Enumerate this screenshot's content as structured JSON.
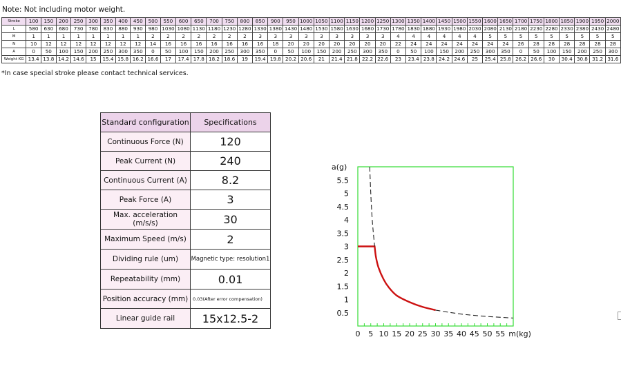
{
  "note": "Note: Not including motor weight.",
  "footnote": "*In case special stroke please contact technical services.",
  "stroke_table": {
    "rows": [
      {
        "label": "Stroke",
        "values": [
          "100",
          "150",
          "200",
          "250",
          "300",
          "350",
          "400",
          "450",
          "500",
          "550",
          "600",
          "650",
          "700",
          "750",
          "800",
          "850",
          "900",
          "950",
          "1000",
          "1050",
          "1100",
          "1150",
          "1200",
          "1250",
          "1300",
          "1350",
          "1400",
          "1450",
          "1500",
          "1550",
          "1600",
          "1650",
          "1700",
          "1750",
          "1800",
          "1850",
          "1900",
          "1950",
          "2000"
        ]
      },
      {
        "label": "L",
        "values": [
          "580",
          "630",
          "680",
          "730",
          "780",
          "830",
          "880",
          "930",
          "980",
          "1030",
          "1080",
          "1130",
          "1180",
          "1230",
          "1280",
          "1330",
          "1380",
          "1430",
          "1480",
          "1530",
          "1580",
          "1630",
          "1680",
          "1730",
          "1780",
          "1830",
          "1880",
          "1930",
          "1980",
          "2030",
          "2080",
          "2130",
          "2180",
          "2230",
          "2280",
          "2330",
          "2380",
          "2430",
          "2480"
        ]
      },
      {
        "label": "M",
        "values": [
          "1",
          "1",
          "1",
          "1",
          "1",
          "1",
          "1",
          "1",
          "2",
          "2",
          "2",
          "2",
          "2",
          "2",
          "2",
          "3",
          "3",
          "3",
          "3",
          "3",
          "3",
          "3",
          "3",
          "3",
          "4",
          "4",
          "4",
          "4",
          "4",
          "4",
          "5",
          "5",
          "5",
          "5",
          "5",
          "5",
          "5",
          "5",
          "5"
        ]
      },
      {
        "label": "N",
        "values": [
          "10",
          "12",
          "12",
          "12",
          "12",
          "12",
          "12",
          "12",
          "14",
          "16",
          "16",
          "16",
          "16",
          "16",
          "16",
          "16",
          "18",
          "20",
          "20",
          "20",
          "20",
          "20",
          "20",
          "20",
          "22",
          "24",
          "24",
          "24",
          "24",
          "24",
          "24",
          "24",
          "26",
          "28",
          "28",
          "28",
          "28",
          "28",
          "28"
        ]
      },
      {
        "label": "A",
        "values": [
          "0",
          "50",
          "100",
          "150",
          "200",
          "250",
          "300",
          "350",
          "0",
          "50",
          "100",
          "150",
          "200",
          "250",
          "300",
          "350",
          "0",
          "50",
          "100",
          "150",
          "200",
          "250",
          "300",
          "350",
          "0",
          "50",
          "100",
          "150",
          "200",
          "250",
          "300",
          "350",
          "0",
          "50",
          "100",
          "150",
          "200",
          "250",
          "300"
        ]
      },
      {
        "label": "Weight KG",
        "values": [
          "13.4",
          "13.8",
          "14.2",
          "14.6",
          "15",
          "15.4",
          "15.8",
          "16.2",
          "16.6",
          "17",
          "17.4",
          "17.8",
          "18.2",
          "18.6",
          "19",
          "19.4",
          "19.8",
          "20.2",
          "20.6",
          "21",
          "21.4",
          "21.8",
          "22.2",
          "22.6",
          "23",
          "23.4",
          "23.8",
          "24.2",
          "24.6",
          "25",
          "25.4",
          "25.8",
          "26.2",
          "26.6",
          "30",
          "30.4",
          "30.8",
          "31.2",
          "31.6"
        ]
      }
    ]
  },
  "spec_table": {
    "header_key": "Standard configuration",
    "header_value": "Specifications",
    "rows": [
      {
        "key": "Continuous Force (N)",
        "value": "120"
      },
      {
        "key": "Peak Current (N)",
        "value": "240"
      },
      {
        "key": "Continuous Current (A)",
        "value": "8.2"
      },
      {
        "key": "Peak Force (A)",
        "value": "3"
      },
      {
        "key": "Max. acceleration (m/s/s)",
        "value": "30"
      },
      {
        "key": "Maximum Speed (m/s)",
        "value": "2"
      },
      {
        "key": "Dividing rule (um)",
        "value": "Magnetic type: resolution1"
      },
      {
        "key": "Repeatability (mm)",
        "value": "0.01"
      },
      {
        "key": "Position accuracy (mm)",
        "value": "0.03(After error compensation)"
      },
      {
        "key": "Linear guide rail",
        "value": "15x12.5-2"
      }
    ]
  },
  "chart_data": {
    "type": "line",
    "ylabel": "a(g)",
    "xlabel": "m(kg)",
    "xlim": [
      0,
      60
    ],
    "ylim": [
      0,
      6
    ],
    "xticks": [
      0,
      5,
      10,
      15,
      20,
      25,
      30,
      35,
      40,
      45,
      50,
      55
    ],
    "yticks": [
      0.5,
      1,
      1.5,
      2,
      2.5,
      3,
      3.5,
      4,
      4.5,
      5,
      5.5
    ],
    "series": [
      {
        "style": "solid",
        "color": "#cc1111",
        "x": [
          0,
          6.5,
          7,
          8,
          10,
          12,
          15,
          20,
          25,
          30
        ],
        "y": [
          3.0,
          3.0,
          2.6,
          2.2,
          1.75,
          1.45,
          1.15,
          0.9,
          0.72,
          0.6
        ]
      },
      {
        "style": "dashed",
        "color": "#222222",
        "x": [
          4.6,
          5,
          5.5,
          6,
          6.5
        ],
        "y": [
          6.0,
          5.0,
          4.1,
          3.5,
          3.0
        ]
      },
      {
        "style": "dashed",
        "color": "#222222",
        "x": [
          30,
          35,
          40,
          45,
          50,
          55,
          60
        ],
        "y": [
          0.6,
          0.52,
          0.45,
          0.4,
          0.36,
          0.33,
          0.3
        ]
      }
    ],
    "frame_color": "#33dd33"
  }
}
